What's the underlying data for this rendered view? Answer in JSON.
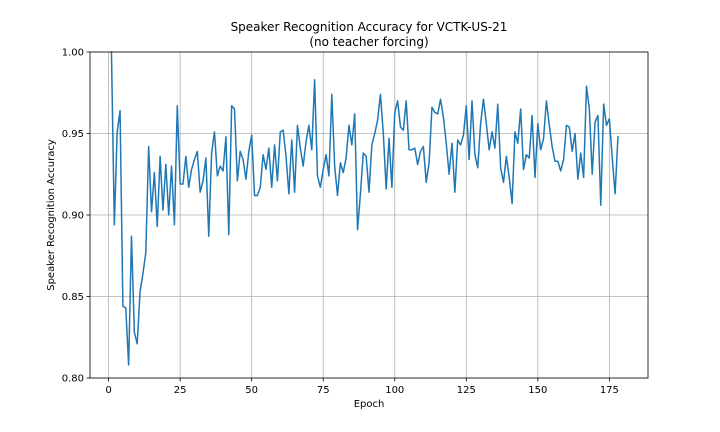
{
  "chart_data": {
    "type": "line",
    "title": "Speaker Recognition Accuracy for VCTK-US-21",
    "subtitle": "(no teacher forcing)",
    "xlabel": "Epoch",
    "ylabel": "Speaker Recognition Accuracy",
    "xlim": [
      -6.5,
      188.5
    ],
    "ylim": [
      0.8,
      1.0
    ],
    "x_ticks": [
      0,
      25,
      50,
      75,
      100,
      125,
      150,
      175
    ],
    "x_tick_labels": [
      "0",
      "25",
      "50",
      "75",
      "100",
      "125",
      "150",
      "175"
    ],
    "y_ticks": [
      0.8,
      0.85,
      0.9,
      0.95,
      1.0
    ],
    "y_tick_labels": [
      "0.80",
      "0.85",
      "0.90",
      "0.95",
      "1.00"
    ],
    "grid": true,
    "legend": "none",
    "color": "#1f77b4",
    "series": [
      {
        "x_start": 1,
        "x_step": 1,
        "values": [
          1.0,
          0.894,
          0.951,
          0.964,
          0.844,
          0.843,
          0.808,
          0.887,
          0.828,
          0.821,
          0.853,
          0.864,
          0.877,
          0.942,
          0.902,
          0.926,
          0.893,
          0.936,
          0.903,
          0.931,
          0.9,
          0.93,
          0.894,
          0.967,
          0.919,
          0.919,
          0.936,
          0.917,
          0.928,
          0.934,
          0.939,
          0.914,
          0.921,
          0.935,
          0.887,
          0.938,
          0.951,
          0.924,
          0.93,
          0.927,
          0.948,
          0.888,
          0.967,
          0.965,
          0.921,
          0.939,
          0.934,
          0.922,
          0.939,
          0.949,
          0.912,
          0.912,
          0.917,
          0.937,
          0.928,
          0.941,
          0.917,
          0.943,
          0.921,
          0.951,
          0.952,
          0.936,
          0.913,
          0.946,
          0.914,
          0.955,
          0.941,
          0.93,
          0.945,
          0.955,
          0.94,
          0.983,
          0.924,
          0.917,
          0.928,
          0.937,
          0.924,
          0.974,
          0.93,
          0.912,
          0.932,
          0.926,
          0.935,
          0.955,
          0.943,
          0.962,
          0.891,
          0.913,
          0.938,
          0.936,
          0.914,
          0.943,
          0.95,
          0.958,
          0.974,
          0.95,
          0.916,
          0.947,
          0.917,
          0.963,
          0.97,
          0.954,
          0.952,
          0.97,
          0.94,
          0.94,
          0.941,
          0.931,
          0.939,
          0.942,
          0.92,
          0.932,
          0.966,
          0.963,
          0.962,
          0.971,
          0.96,
          0.944,
          0.925,
          0.944,
          0.914,
          0.946,
          0.943,
          0.949,
          0.967,
          0.934,
          0.97,
          0.937,
          0.929,
          0.956,
          0.971,
          0.956,
          0.94,
          0.951,
          0.941,
          0.968,
          0.929,
          0.92,
          0.936,
          0.923,
          0.907,
          0.951,
          0.944,
          0.965,
          0.928,
          0.937,
          0.935,
          0.961,
          0.923,
          0.956,
          0.94,
          0.947,
          0.97,
          0.955,
          0.942,
          0.933,
          0.933,
          0.927,
          0.934,
          0.955,
          0.954,
          0.939,
          0.95,
          0.922,
          0.938,
          0.923,
          0.979,
          0.965,
          0.925,
          0.957,
          0.961,
          0.906,
          0.968,
          0.955,
          0.959,
          0.935,
          0.913,
          0.948
        ]
      }
    ]
  }
}
